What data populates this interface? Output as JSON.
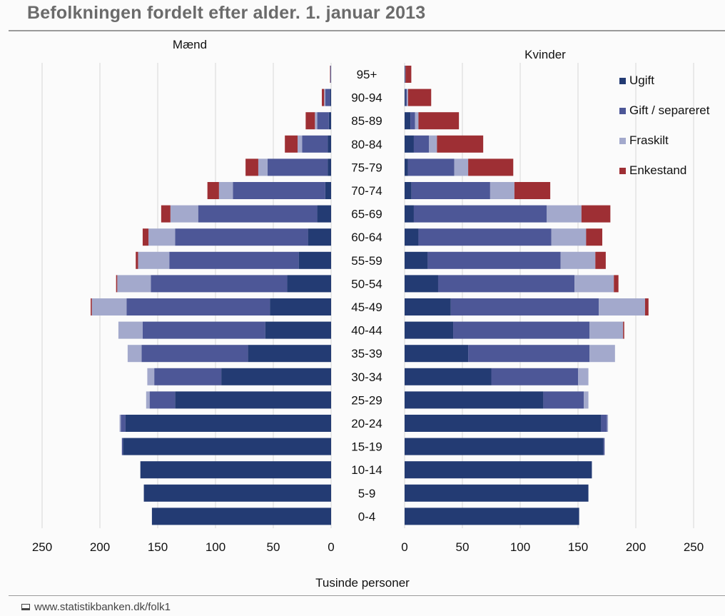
{
  "title": "Befolkningen fordelt efter alder. 1. januar 2013",
  "source": "www.statistikbanken.dk/folk1",
  "colors": {
    "Ugift": "#233b73",
    "Gift / separeret": "#4d5797",
    "Fraskilt": "#a3a9cc",
    "Enkestand": "#9e2f34",
    "grid": "#d7d7d7",
    "text": "#111111"
  },
  "chart_data": {
    "type": "bar",
    "orientation": "horizontal",
    "title": "Befolkningen fordelt efter alder. 1. januar 2013",
    "panel_labels": {
      "left": "Mænd",
      "right": "Kvinder"
    },
    "xlabel": "Tusinde personer",
    "xlim": [
      0,
      250
    ],
    "xticks": [
      0,
      50,
      100,
      150,
      200,
      250
    ],
    "grid": true,
    "stacked": true,
    "legend": [
      "Ugift",
      "Gift / separeret",
      "Fraskilt",
      "Enkestand"
    ],
    "legend_position": "top-right",
    "categories": [
      "95+",
      "90-94",
      "85-89",
      "80-84",
      "75-79",
      "70-74",
      "65-69",
      "60-64",
      "55-59",
      "50-54",
      "45-49",
      "40-44",
      "35-39",
      "30-34",
      "25-29",
      "20-24",
      "15-19",
      "10-14",
      "5-9",
      "0-4"
    ],
    "men": [
      {
        "name": "Ugift",
        "values": [
          0.2,
          1,
          2,
          3,
          3,
          5,
          12,
          20,
          28,
          38,
          53,
          57,
          72,
          95,
          135,
          178,
          180,
          165,
          162,
          155
        ]
      },
      {
        "name": "Gift / separeret",
        "values": [
          0.4,
          4,
          10,
          22,
          52,
          80,
          103,
          115,
          112,
          118,
          124,
          106,
          92,
          58,
          22,
          4,
          1,
          0,
          0,
          0
        ]
      },
      {
        "name": "Fraskilt",
        "values": [
          0.1,
          1,
          2,
          4,
          8,
          12,
          24,
          23,
          27,
          29,
          30,
          21,
          12,
          6,
          3,
          1,
          0,
          0,
          0,
          0
        ]
      },
      {
        "name": "Enkestand",
        "values": [
          0.3,
          2,
          8,
          11,
          11,
          10,
          8,
          5,
          2,
          1,
          1,
          0,
          0,
          0,
          0,
          0,
          0,
          0,
          0,
          0
        ]
      }
    ],
    "women": [
      {
        "name": "Ugift",
        "values": [
          0.3,
          1,
          5,
          8,
          3,
          6,
          8,
          12,
          20,
          29,
          40,
          42,
          55,
          75,
          120,
          170,
          172,
          162,
          159,
          151
        ]
      },
      {
        "name": "Gift / separeret",
        "values": [
          0.3,
          1,
          4,
          13,
          40,
          68,
          115,
          115,
          115,
          118,
          128,
          118,
          105,
          75,
          35,
          5,
          1,
          0,
          0,
          0
        ]
      },
      {
        "name": "Fraskilt",
        "values": [
          0.2,
          1,
          3,
          7,
          12,
          21,
          30,
          30,
          30,
          34,
          40,
          29,
          22,
          9,
          4,
          1,
          0,
          0,
          0,
          0
        ]
      },
      {
        "name": "Enkestand",
        "values": [
          5,
          20,
          35,
          40,
          39,
          31,
          25,
          14,
          9,
          4,
          3,
          1,
          0,
          0,
          0,
          0,
          0,
          0,
          0,
          0
        ]
      }
    ]
  }
}
